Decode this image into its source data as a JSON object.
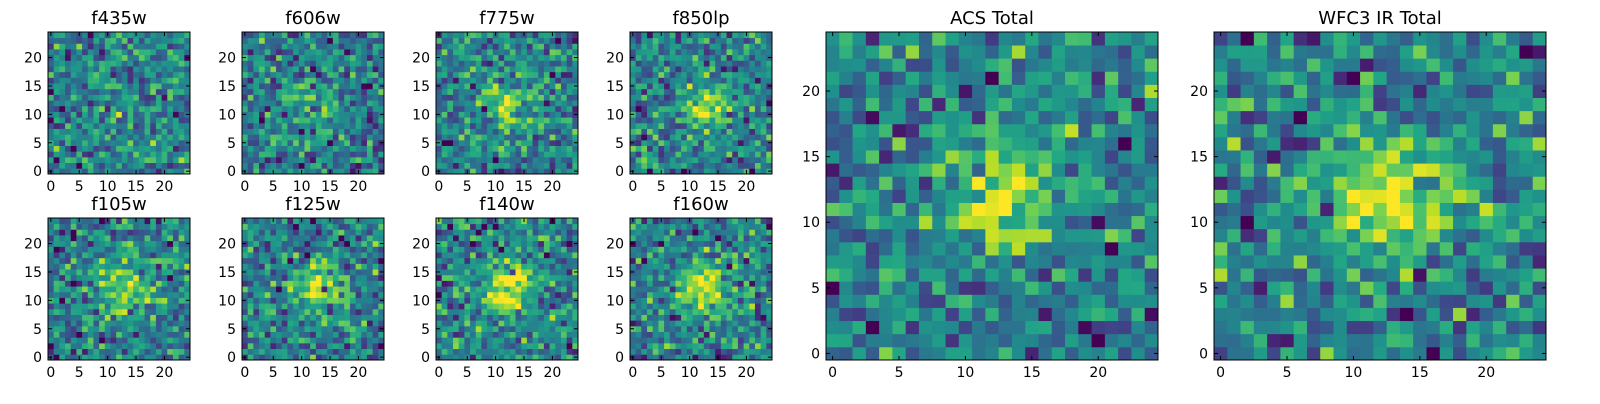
{
  "chart_data": [
    {
      "type": "heatmap",
      "title": "f435w",
      "grid_size": [
        25,
        25
      ],
      "xticks": [
        0,
        5,
        10,
        15,
        20
      ],
      "yticks": [
        0,
        5,
        10,
        15,
        20
      ],
      "colormap": "viridis",
      "center_signal": 0.05,
      "seed": 11
    },
    {
      "type": "heatmap",
      "title": "f606w",
      "grid_size": [
        25,
        25
      ],
      "xticks": [
        0,
        5,
        10,
        15,
        20
      ],
      "yticks": [
        0,
        5,
        10,
        15,
        20
      ],
      "colormap": "viridis",
      "center_signal": 0.15,
      "seed": 22
    },
    {
      "type": "heatmap",
      "title": "f775w",
      "grid_size": [
        25,
        25
      ],
      "xticks": [
        0,
        5,
        10,
        15,
        20
      ],
      "yticks": [
        0,
        5,
        10,
        15,
        20
      ],
      "colormap": "viridis",
      "center_signal": 0.3,
      "seed": 33
    },
    {
      "type": "heatmap",
      "title": "f850lp",
      "grid_size": [
        25,
        25
      ],
      "xticks": [
        0,
        5,
        10,
        15,
        20
      ],
      "yticks": [
        0,
        5,
        10,
        15,
        20
      ],
      "colormap": "viridis",
      "center_signal": 0.3,
      "seed": 44
    },
    {
      "type": "heatmap",
      "title": "f105w",
      "grid_size": [
        25,
        25
      ],
      "xticks": [
        0,
        5,
        10,
        15,
        20
      ],
      "yticks": [
        0,
        5,
        10,
        15,
        20
      ],
      "colormap": "viridis",
      "center_signal": 0.35,
      "seed": 55
    },
    {
      "type": "heatmap",
      "title": "f125w",
      "grid_size": [
        25,
        25
      ],
      "xticks": [
        0,
        5,
        10,
        15,
        20
      ],
      "yticks": [
        0,
        5,
        10,
        15,
        20
      ],
      "colormap": "viridis",
      "center_signal": 0.35,
      "seed": 66
    },
    {
      "type": "heatmap",
      "title": "f140w",
      "grid_size": [
        25,
        25
      ],
      "xticks": [
        0,
        5,
        10,
        15,
        20
      ],
      "yticks": [
        0,
        5,
        10,
        15,
        20
      ],
      "colormap": "viridis",
      "center_signal": 0.45,
      "seed": 77
    },
    {
      "type": "heatmap",
      "title": "f160w",
      "grid_size": [
        25,
        25
      ],
      "xticks": [
        0,
        5,
        10,
        15,
        20
      ],
      "yticks": [
        0,
        5,
        10,
        15,
        20
      ],
      "colormap": "viridis",
      "center_signal": 0.4,
      "seed": 88
    },
    {
      "type": "heatmap",
      "title": "ACS Total",
      "grid_size": [
        25,
        25
      ],
      "xticks": [
        0,
        5,
        10,
        15,
        20
      ],
      "yticks": [
        0,
        5,
        10,
        15,
        20
      ],
      "colormap": "viridis",
      "center_signal": 0.35,
      "seed": 99
    },
    {
      "type": "heatmap",
      "title": "WFC3 IR Total",
      "grid_size": [
        25,
        25
      ],
      "xticks": [
        0,
        5,
        10,
        15,
        20
      ],
      "yticks": [
        0,
        5,
        10,
        15,
        20
      ],
      "colormap": "viridis",
      "center_signal": 0.5,
      "seed": 123
    }
  ]
}
